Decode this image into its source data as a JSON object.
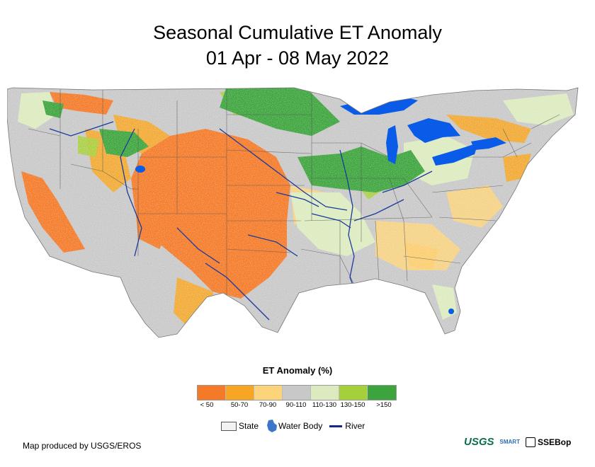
{
  "title": {
    "line1": "Seasonal Cumulative ET Anomaly",
    "line2": "01 Apr - 08 May 2022"
  },
  "map": {
    "region": "Conterminous United States",
    "colors": {
      "land_gray": "#c8c8c8",
      "water": "#0a5be8",
      "river": "#1a3a9c",
      "state_border": "#555555",
      "mexico_canada": "#ffffff"
    }
  },
  "legend": {
    "title": "ET Anomaly (%)",
    "classes": [
      {
        "label": "< 50",
        "color": "#f47a28"
      },
      {
        "label": "50-70",
        "color": "#f6a623"
      },
      {
        "label": "70-90",
        "color": "#fdd47a"
      },
      {
        "label": "90-110",
        "color": "#c8c8c8"
      },
      {
        "label": "110-130",
        "color": "#dcebbf"
      },
      {
        "label": "130-150",
        "color": "#a6cf3c"
      },
      {
        "label": ">150",
        "color": "#3ca43c"
      }
    ],
    "symbols": {
      "state": "State",
      "water_body": "Water Body",
      "river": "River"
    }
  },
  "credit": "Map produced by USGS/EROS",
  "logos": {
    "usgs": "USGS",
    "smart": "SMART",
    "ssebop": "SSEBop"
  }
}
